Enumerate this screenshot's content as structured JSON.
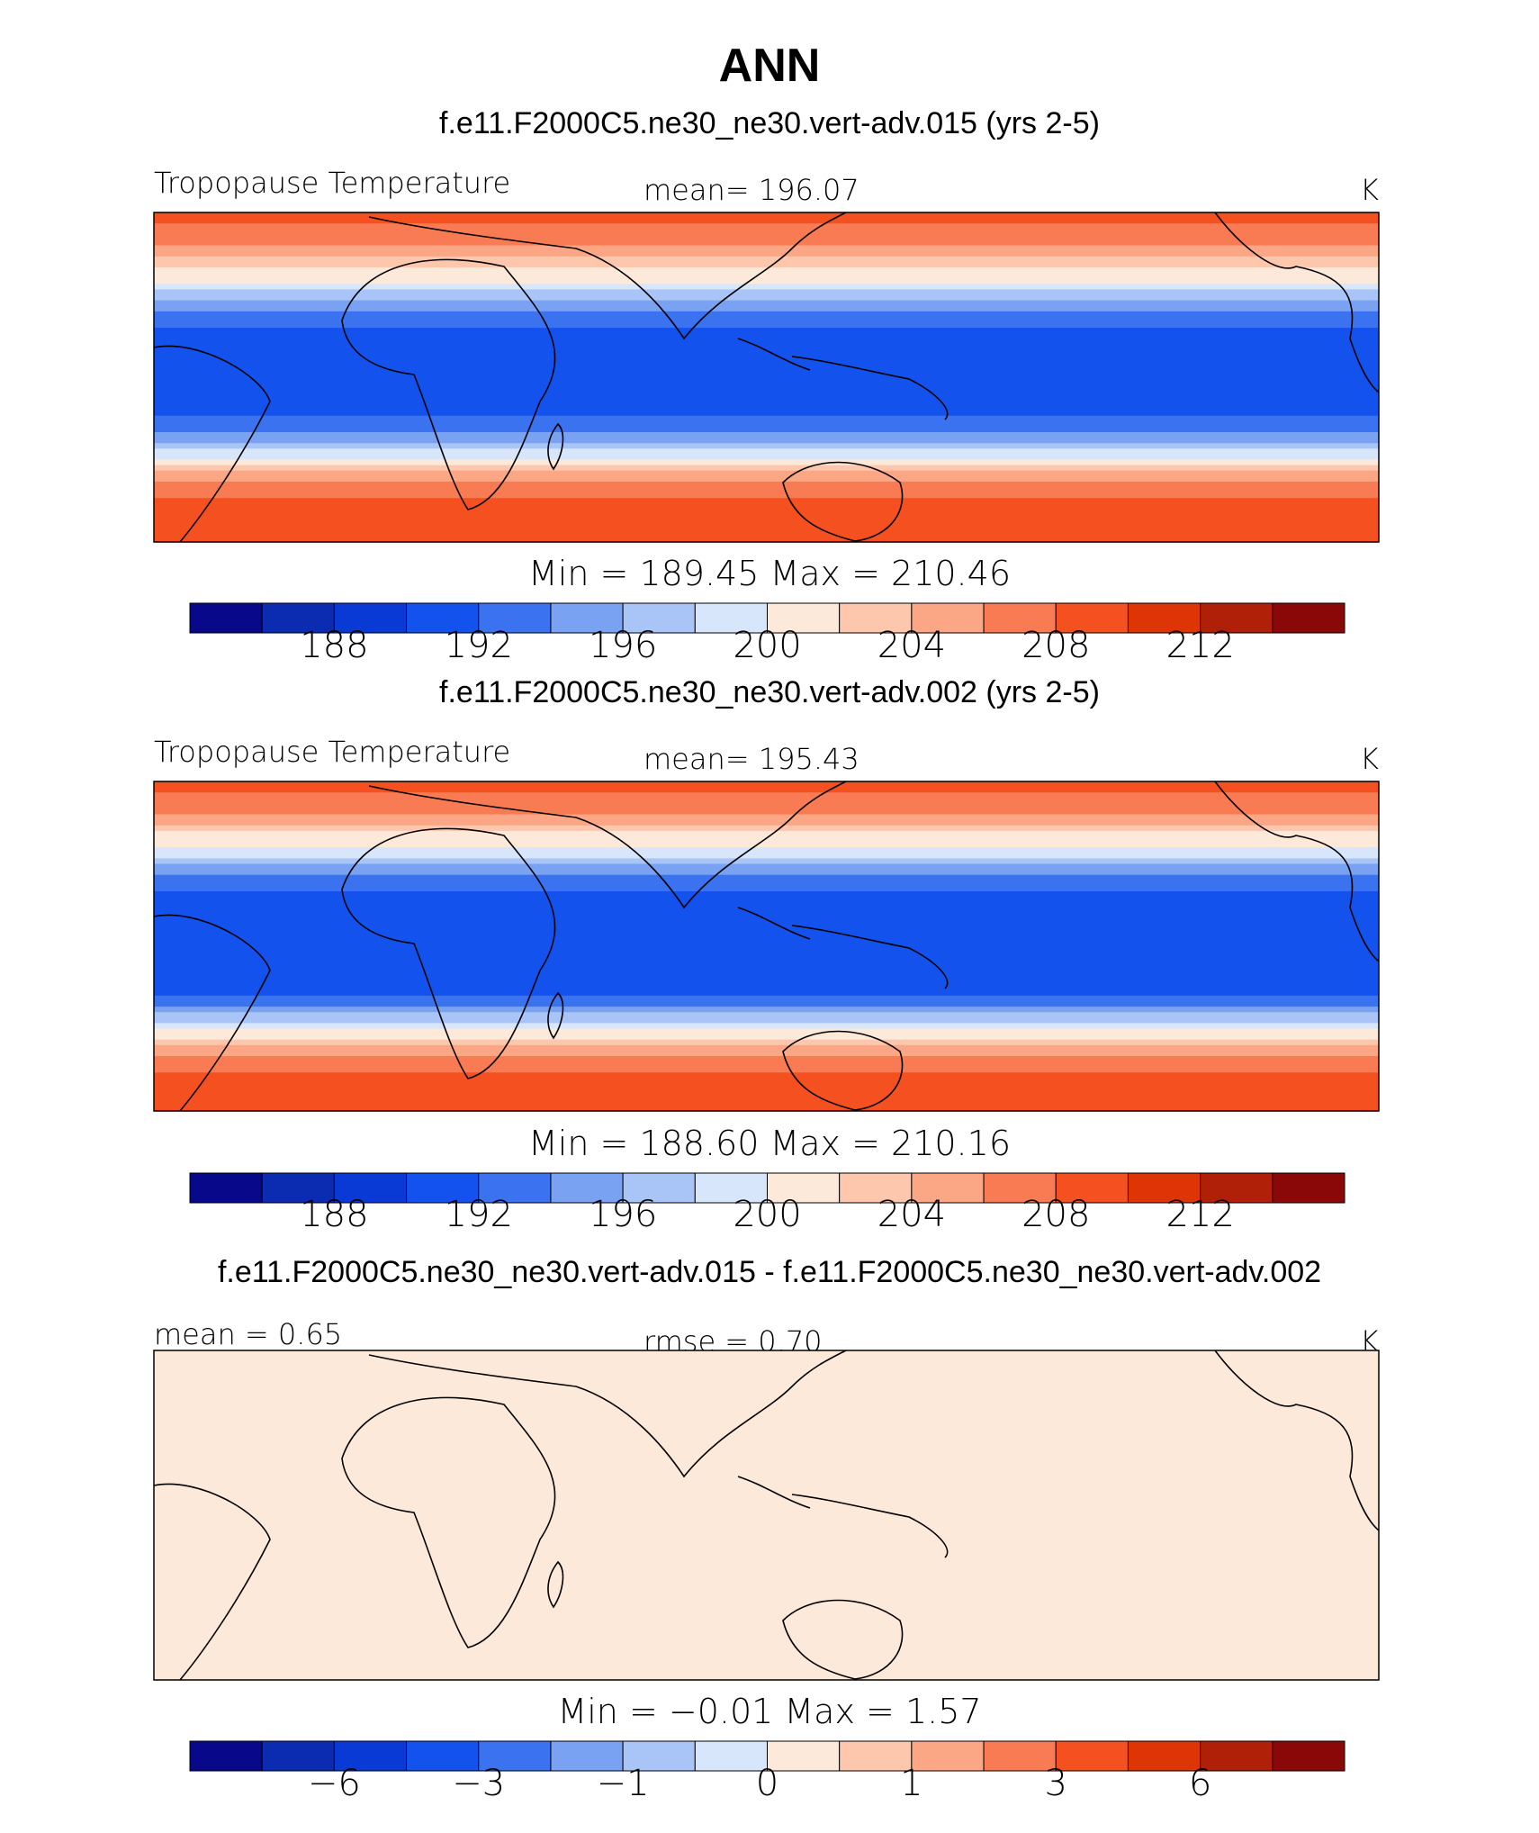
{
  "figure": {
    "title": "ANN"
  },
  "chart_data": [
    {
      "type": "heatmap",
      "title": "f.e11.F2000C5.ne30_ne30.vert-adv.015 (yrs 2-5)",
      "left_label": "Tropopause Temperature",
      "center_label": "mean=  196.07",
      "units": "K",
      "min_max": "Min  =  189.45  Max  =  210.46",
      "colorbar_ticks": [
        "188",
        "192",
        "196",
        "200",
        "204",
        "208",
        "212"
      ],
      "bands": [
        {
          "lat": 90,
          "value": 209
        },
        {
          "lat": 72,
          "value": 206
        },
        {
          "lat": 62,
          "value": 203
        },
        {
          "lat": 52,
          "value": 200
        },
        {
          "lat": 44,
          "value": 197
        },
        {
          "lat": 36,
          "value": 194
        },
        {
          "lat": 26,
          "value": 192
        },
        {
          "lat": 10,
          "value": 190
        },
        {
          "lat": -18,
          "value": 191
        },
        {
          "lat": -30,
          "value": 194
        },
        {
          "lat": -40,
          "value": 198
        },
        {
          "lat": -50,
          "value": 203
        },
        {
          "lat": -60,
          "value": 207
        },
        {
          "lat": -75,
          "value": 209
        },
        {
          "lat": -90,
          "value": 210
        }
      ]
    },
    {
      "type": "heatmap",
      "title": "f.e11.F2000C5.ne30_ne30.vert-adv.002 (yrs 2-5)",
      "left_label": "Tropopause Temperature",
      "center_label": "mean=  195.43",
      "units": "K",
      "min_max": "Min  =  188.60  Max  =  210.16",
      "colorbar_ticks": [
        "188",
        "192",
        "196",
        "200",
        "204",
        "208",
        "212"
      ],
      "bands": [
        {
          "lat": 90,
          "value": 209
        },
        {
          "lat": 72,
          "value": 206
        },
        {
          "lat": 62,
          "value": 202
        },
        {
          "lat": 52,
          "value": 199
        },
        {
          "lat": 44,
          "value": 196
        },
        {
          "lat": 36,
          "value": 193
        },
        {
          "lat": 26,
          "value": 191
        },
        {
          "lat": 10,
          "value": 190
        },
        {
          "lat": -18,
          "value": 190
        },
        {
          "lat": -30,
          "value": 193
        },
        {
          "lat": -40,
          "value": 197
        },
        {
          "lat": -50,
          "value": 202
        },
        {
          "lat": -60,
          "value": 206
        },
        {
          "lat": -75,
          "value": 209
        },
        {
          "lat": -90,
          "value": 210
        }
      ]
    },
    {
      "type": "heatmap",
      "title": "f.e11.F2000C5.ne30_ne30.vert-adv.015 - f.e11.F2000C5.ne30_ne30.vert-adv.002",
      "left_label": "mean =     0.65",
      "center_label": "rmse =     0.70",
      "units": "K",
      "min_max": "Min  =    −0.01  Max  =     1.57",
      "colorbar_ticks": [
        "−6",
        "−3",
        "−1",
        "0",
        "1",
        "3",
        "6"
      ],
      "bands": [
        {
          "lat": 90,
          "value": 0.6
        },
        {
          "lat": 45,
          "value": 0.6
        },
        {
          "lat": 10,
          "value": 0.8
        },
        {
          "lat": -30,
          "value": 0.5
        },
        {
          "lat": -90,
          "value": 0.7
        }
      ]
    }
  ],
  "colors": {
    "palette": [
      "#08088a",
      "#0b2bb0",
      "#0a3ad6",
      "#1452ee",
      "#3a72ef",
      "#7aa2f3",
      "#a9c4f7",
      "#d7e6fb",
      "#fde9d9",
      "#fcc7ad",
      "#fba684",
      "#f97b53",
      "#f5501f",
      "#dd3505",
      "#b01f08",
      "#8a0808"
    ]
  }
}
